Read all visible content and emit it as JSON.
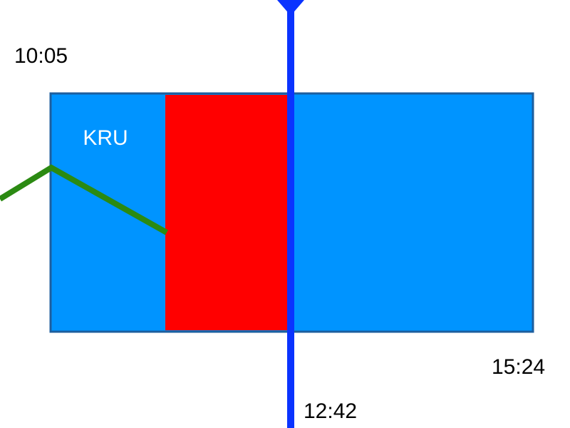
{
  "diagram": {
    "block": {
      "label": "KRU",
      "color": "#0094FF",
      "border_color": "#1D5E9E"
    },
    "highlight": {
      "color": "#FF0000"
    },
    "trend_line": {
      "color": "#2B8A12"
    },
    "marker": {
      "color": "#0A33FF"
    },
    "times": {
      "start": "10:05",
      "end": "15:24",
      "current": "12:42"
    }
  }
}
